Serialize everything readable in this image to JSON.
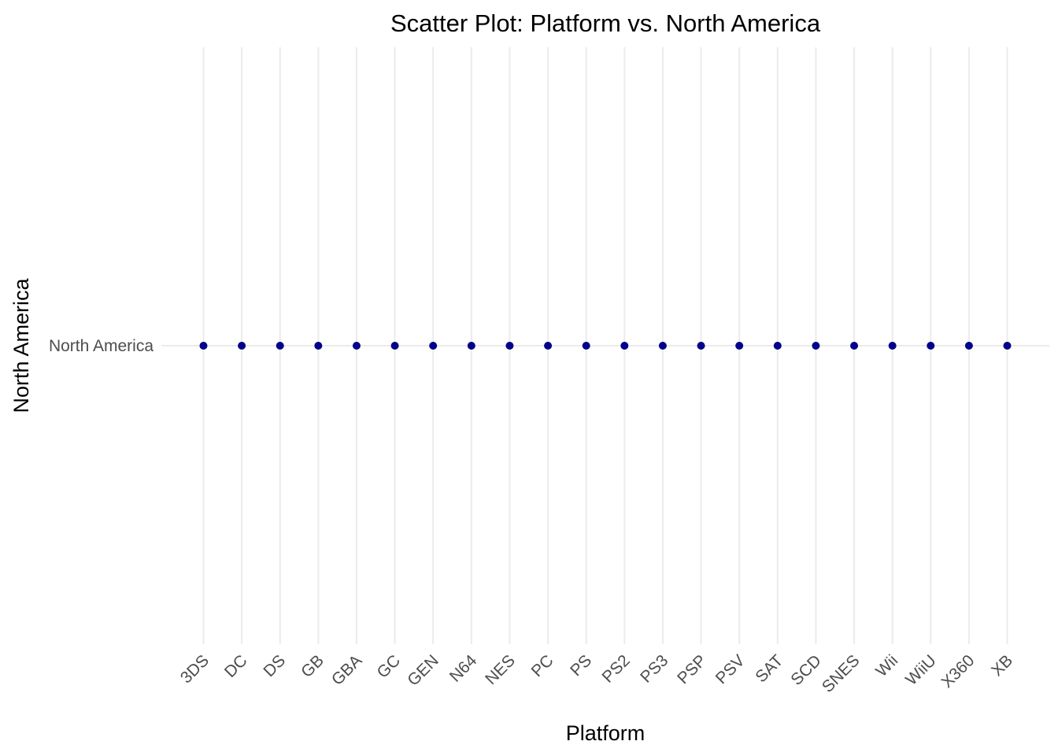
{
  "chart_data": {
    "type": "scatter",
    "title": "Scatter Plot: Platform vs. North America",
    "xlabel": "Platform",
    "ylabel": "North America",
    "x": [
      "3DS",
      "DC",
      "DS",
      "GB",
      "GBA",
      "GC",
      "GEN",
      "N64",
      "NES",
      "PC",
      "PS",
      "PS2",
      "PS3",
      "PSP",
      "PSV",
      "SAT",
      "SCD",
      "SNES",
      "Wii",
      "WiiU",
      "X360",
      "XB"
    ],
    "y_categories": [
      "North America"
    ],
    "points": [
      {
        "x": "3DS",
        "y": "North America"
      },
      {
        "x": "DC",
        "y": "North America"
      },
      {
        "x": "DS",
        "y": "North America"
      },
      {
        "x": "GB",
        "y": "North America"
      },
      {
        "x": "GBA",
        "y": "North America"
      },
      {
        "x": "GC",
        "y": "North America"
      },
      {
        "x": "GEN",
        "y": "North America"
      },
      {
        "x": "N64",
        "y": "North America"
      },
      {
        "x": "NES",
        "y": "North America"
      },
      {
        "x": "PC",
        "y": "North America"
      },
      {
        "x": "PS",
        "y": "North America"
      },
      {
        "x": "PS2",
        "y": "North America"
      },
      {
        "x": "PS3",
        "y": "North America"
      },
      {
        "x": "PSP",
        "y": "North America"
      },
      {
        "x": "PSV",
        "y": "North America"
      },
      {
        "x": "SAT",
        "y": "North America"
      },
      {
        "x": "SCD",
        "y": "North America"
      },
      {
        "x": "SNES",
        "y": "North America"
      },
      {
        "x": "Wii",
        "y": "North America"
      },
      {
        "x": "WiiU",
        "y": "North America"
      },
      {
        "x": "X360",
        "y": "North America"
      },
      {
        "x": "XB",
        "y": "North America"
      }
    ],
    "point_color": "#00008b",
    "grid": true,
    "legend": "none"
  }
}
